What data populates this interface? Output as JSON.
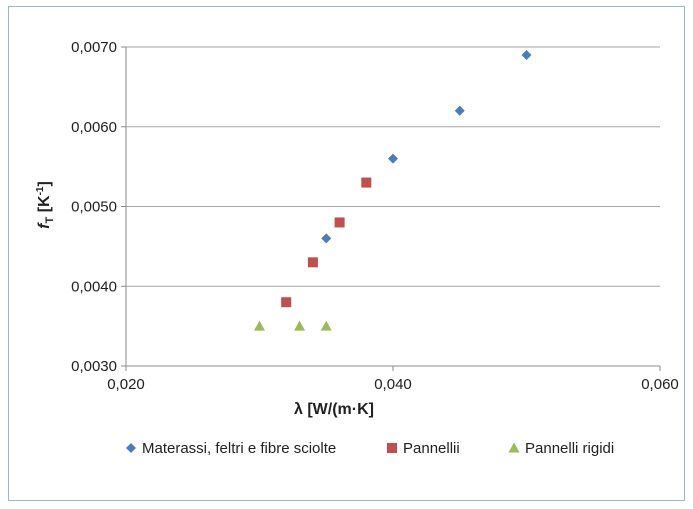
{
  "chart_data": {
    "type": "scatter",
    "xlabel": "λ [W/(m·K]",
    "ylabel_main": "f",
    "ylabel_sub": "T",
    "ylabel_unit": " [K",
    "ylabel_sup": "-1",
    "ylabel_close": "]",
    "xlim": [
      0.02,
      0.06
    ],
    "ylim": [
      0.003,
      0.007
    ],
    "x_ticks": [
      {
        "value": 0.02,
        "label": "0,020"
      },
      {
        "value": 0.04,
        "label": "0,040"
      },
      {
        "value": 0.06,
        "label": "0,060"
      }
    ],
    "y_ticks": [
      {
        "value": 0.003,
        "label": "0,0030"
      },
      {
        "value": 0.004,
        "label": "0,0040"
      },
      {
        "value": 0.005,
        "label": "0,0050"
      },
      {
        "value": 0.006,
        "label": "0,0060"
      },
      {
        "value": 0.007,
        "label": "0,0070"
      }
    ],
    "grid": "horizontal",
    "legend_position": "bottom",
    "series": [
      {
        "name": "Materassi, feltri e fibre sciolte",
        "marker": "diamond",
        "color": "#4a7ebb",
        "points": [
          {
            "x": 0.035,
            "y": 0.0046
          },
          {
            "x": 0.04,
            "y": 0.0056
          },
          {
            "x": 0.045,
            "y": 0.0062
          },
          {
            "x": 0.05,
            "y": 0.0069
          }
        ]
      },
      {
        "name": "Pannellii",
        "marker": "square",
        "color": "#c0504d",
        "points": [
          {
            "x": 0.032,
            "y": 0.0038
          },
          {
            "x": 0.034,
            "y": 0.0043
          },
          {
            "x": 0.036,
            "y": 0.0048
          },
          {
            "x": 0.038,
            "y": 0.0053
          }
        ]
      },
      {
        "name": "Pannelli rigidi",
        "marker": "triangle",
        "color": "#9bbb59",
        "points": [
          {
            "x": 0.03,
            "y": 0.0035
          },
          {
            "x": 0.033,
            "y": 0.0035
          },
          {
            "x": 0.035,
            "y": 0.0035
          }
        ]
      }
    ]
  }
}
